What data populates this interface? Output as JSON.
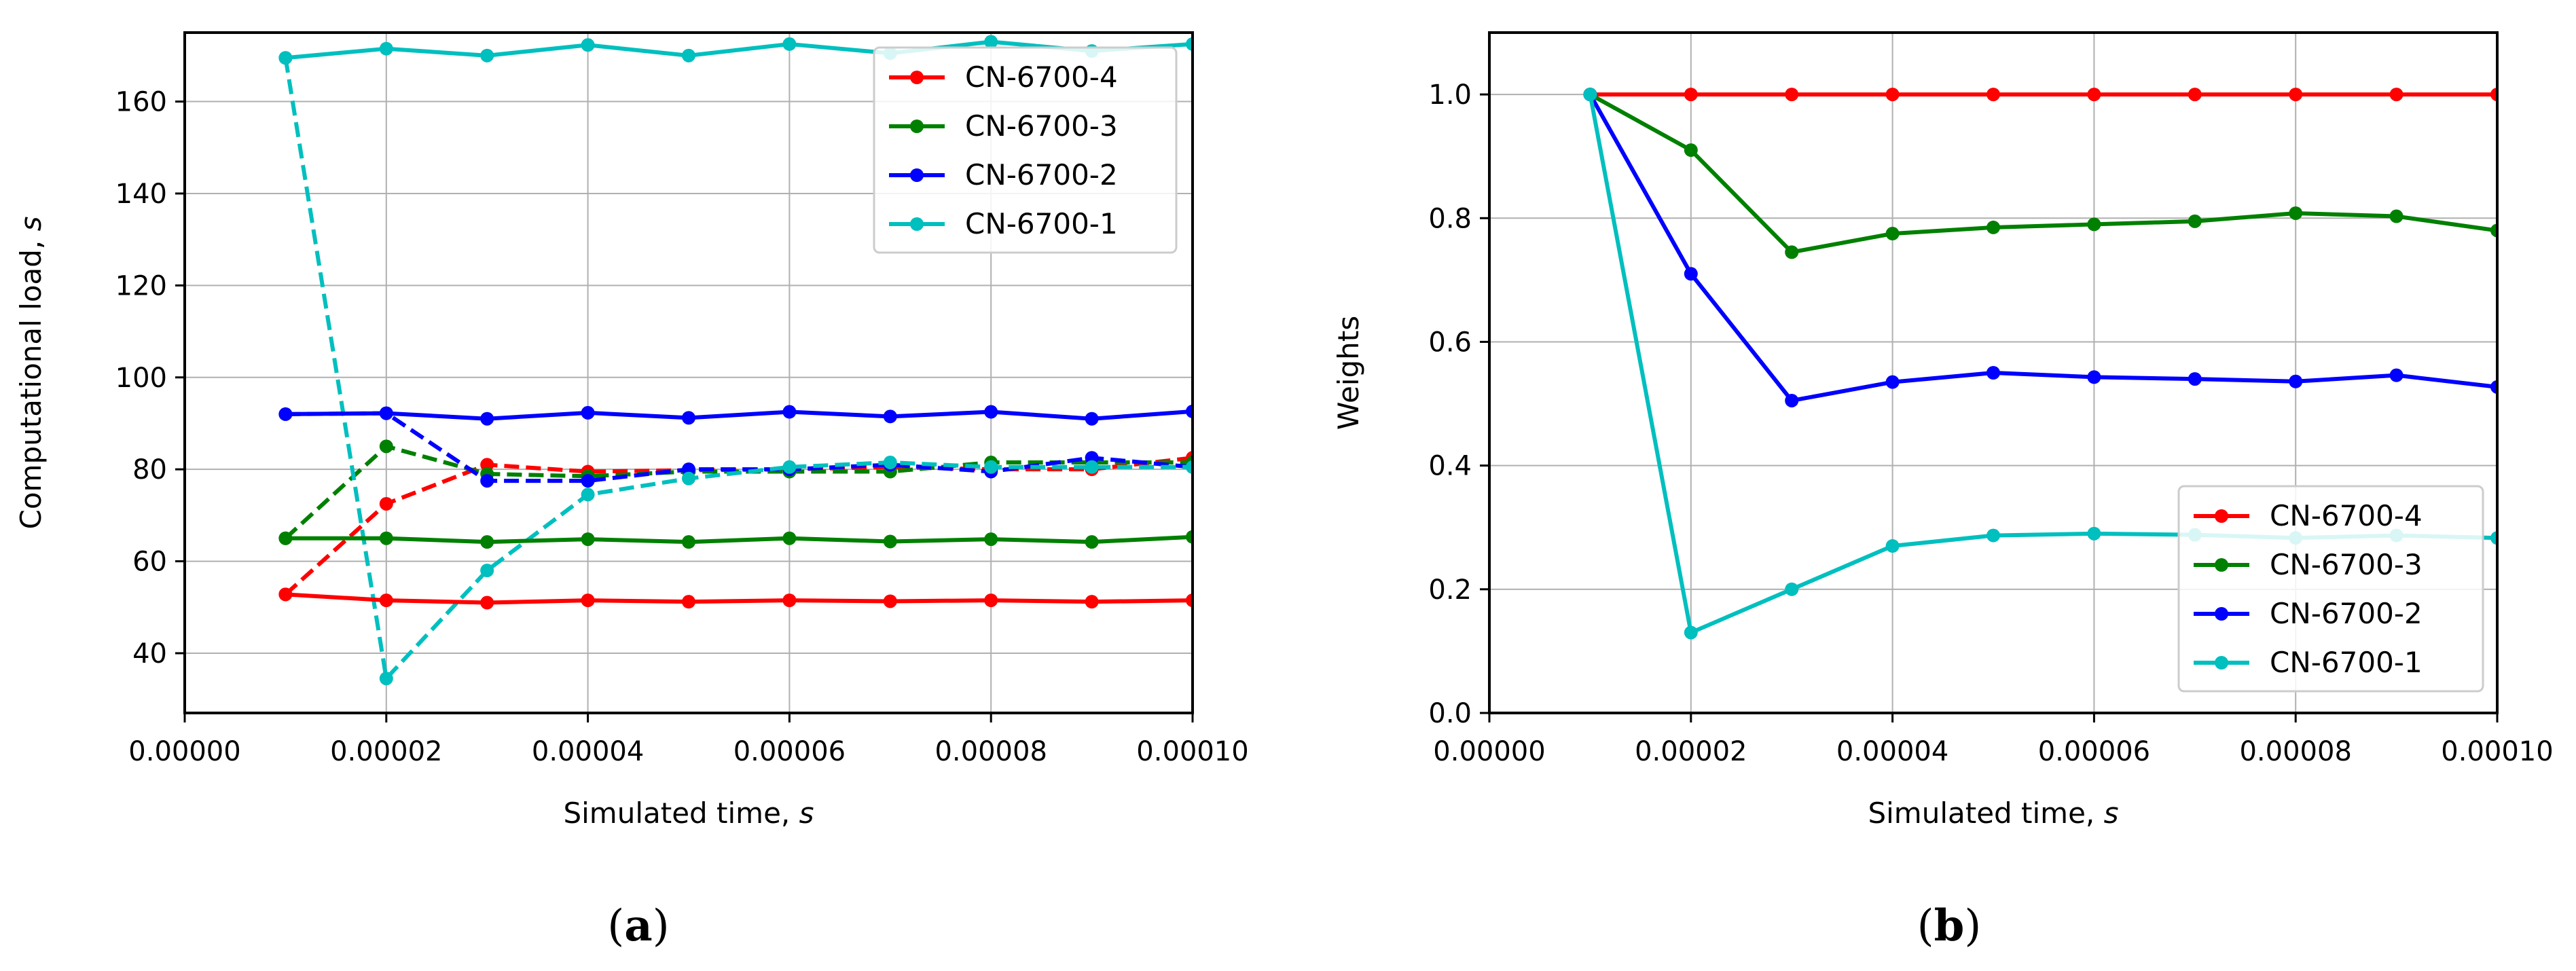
{
  "chart_data": [
    {
      "type": "line",
      "panel": "a",
      "panel_label": "(a)",
      "panel_letter": "a",
      "xlabel": "Simulated time, ",
      "xlabel_italic": "s",
      "ylabel": "Computational load, ",
      "ylabel_italic": "s",
      "xlim": [
        0.0,
        0.0001
      ],
      "ylim": [
        27,
        175
      ],
      "xticks": [
        0.0,
        2e-05,
        4e-05,
        6e-05,
        8e-05,
        0.0001
      ],
      "xtick_labels": [
        "0.00000",
        "0.00002",
        "0.00004",
        "0.00006",
        "0.00008",
        "0.00010"
      ],
      "yticks": [
        40,
        60,
        80,
        100,
        120,
        140,
        160
      ],
      "ytick_labels": [
        "40",
        "60",
        "80",
        "100",
        "120",
        "140",
        "160"
      ],
      "grid": true,
      "legend_position": "top-right",
      "x": [
        1e-05,
        2e-05,
        3e-05,
        4e-05,
        5e-05,
        6e-05,
        7e-05,
        8e-05,
        9e-05,
        0.0001
      ],
      "series": [
        {
          "name": "CN-6700-4",
          "color": "#ff0000",
          "style": "solid",
          "in_legend": true,
          "values": [
            52.8,
            51.5,
            51.0,
            51.5,
            51.2,
            51.5,
            51.3,
            51.5,
            51.2,
            51.5
          ]
        },
        {
          "name": "CN-6700-3",
          "color": "#008000",
          "style": "solid",
          "in_legend": true,
          "values": [
            65.0,
            65.0,
            64.2,
            64.8,
            64.2,
            65.0,
            64.3,
            64.8,
            64.2,
            65.3
          ]
        },
        {
          "name": "CN-6700-2",
          "color": "#0000ff",
          "style": "solid",
          "in_legend": true,
          "values": [
            92.0,
            92.2,
            91.0,
            92.3,
            91.2,
            92.5,
            91.5,
            92.5,
            91.0,
            92.6
          ]
        },
        {
          "name": "CN-6700-1",
          "color": "#00bfbf",
          "style": "solid",
          "in_legend": true,
          "values": [
            169.5,
            171.5,
            170.0,
            172.3,
            170.0,
            172.5,
            170.5,
            173.0,
            171.0,
            172.5
          ]
        },
        {
          "name": "CN-6700-4 (dashed)",
          "color": "#ff0000",
          "style": "dashed",
          "in_legend": false,
          "values": [
            52.8,
            72.5,
            81.0,
            79.5,
            79.8,
            80.0,
            80.5,
            80.0,
            80.0,
            82.5
          ]
        },
        {
          "name": "CN-6700-3 (dashed)",
          "color": "#008000",
          "style": "dashed",
          "in_legend": false,
          "values": [
            65.0,
            85.0,
            79.0,
            78.5,
            79.5,
            79.5,
            79.5,
            81.5,
            81.5,
            81.5
          ]
        },
        {
          "name": "CN-6700-2 (dashed)",
          "color": "#0000ff",
          "style": "dashed",
          "in_legend": false,
          "values": [
            92.0,
            92.2,
            77.5,
            77.5,
            80.0,
            80.0,
            81.0,
            79.5,
            82.5,
            80.5
          ]
        },
        {
          "name": "CN-6700-1 (dashed)",
          "color": "#00bfbf",
          "style": "dashed",
          "in_legend": false,
          "values": [
            169.5,
            34.5,
            58.0,
            74.5,
            78.0,
            80.5,
            81.5,
            80.5,
            80.5,
            80.5
          ]
        }
      ]
    },
    {
      "type": "line",
      "panel": "b",
      "panel_label": "(b)",
      "panel_letter": "b",
      "xlabel": "Simulated time, ",
      "xlabel_italic": "s",
      "ylabel": "Weights",
      "ylabel_italic": "",
      "xlim": [
        0.0,
        0.0001
      ],
      "ylim": [
        0.0,
        1.1
      ],
      "xticks": [
        0.0,
        2e-05,
        4e-05,
        6e-05,
        8e-05,
        0.0001
      ],
      "xtick_labels": [
        "0.00000",
        "0.00002",
        "0.00004",
        "0.00006",
        "0.00008",
        "0.00010"
      ],
      "yticks": [
        0.0,
        0.2,
        0.4,
        0.6,
        0.8,
        1.0
      ],
      "ytick_labels": [
        "0.0",
        "0.2",
        "0.4",
        "0.6",
        "0.8",
        "1.0"
      ],
      "grid": true,
      "legend_position": "bottom-right",
      "x": [
        1e-05,
        2e-05,
        3e-05,
        4e-05,
        5e-05,
        6e-05,
        7e-05,
        8e-05,
        9e-05,
        0.0001
      ],
      "series": [
        {
          "name": "CN-6700-4",
          "color": "#ff0000",
          "style": "solid",
          "in_legend": true,
          "values": [
            1.0,
            1.0,
            1.0,
            1.0,
            1.0,
            1.0,
            1.0,
            1.0,
            1.0,
            1.0
          ]
        },
        {
          "name": "CN-6700-3",
          "color": "#008000",
          "style": "solid",
          "in_legend": true,
          "values": [
            1.0,
            0.91,
            0.745,
            0.775,
            0.785,
            0.79,
            0.795,
            0.808,
            0.803,
            0.78
          ]
        },
        {
          "name": "CN-6700-2",
          "color": "#0000ff",
          "style": "solid",
          "in_legend": true,
          "values": [
            1.0,
            0.71,
            0.505,
            0.535,
            0.55,
            0.543,
            0.54,
            0.536,
            0.546,
            0.527
          ]
        },
        {
          "name": "CN-6700-1",
          "color": "#00bfbf",
          "style": "solid",
          "in_legend": true,
          "values": [
            1.0,
            0.13,
            0.2,
            0.27,
            0.287,
            0.29,
            0.288,
            0.283,
            0.287,
            0.283
          ]
        }
      ]
    }
  ]
}
